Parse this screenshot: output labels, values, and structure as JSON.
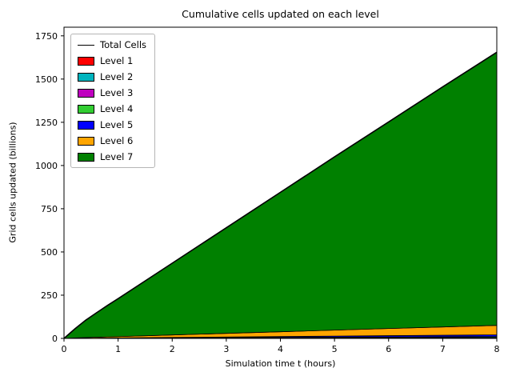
{
  "chart_data": {
    "type": "area",
    "title": "Cumulative cells updated on each level",
    "xlabel": "Simulation time t (hours)",
    "ylabel": "Grid cells updated (billions)",
    "xlim": [
      0,
      8
    ],
    "ylim": [
      0,
      1800
    ],
    "xticks": [
      0,
      1,
      2,
      3,
      4,
      5,
      6,
      7,
      8
    ],
    "yticks": [
      0,
      250,
      500,
      750,
      1000,
      1250,
      1500,
      1750
    ],
    "grid": false,
    "legend_position": "upper left",
    "x": [
      0,
      0.2,
      0.4,
      0.6,
      0.8,
      1,
      2,
      3,
      4,
      5,
      6,
      7,
      8
    ],
    "series": [
      {
        "name": "Level 1",
        "color": "#ff0000",
        "values": [
          0,
          0.0,
          0.1,
          0.1,
          0.1,
          0.1,
          0.3,
          0.4,
          0.5,
          0.6,
          0.8,
          0.9,
          1.0
        ]
      },
      {
        "name": "Level 2",
        "color": "#00b4be",
        "values": [
          0,
          0.1,
          0.1,
          0.2,
          0.2,
          0.3,
          0.5,
          0.8,
          1.0,
          1.3,
          1.5,
          1.7,
          2.0
        ]
      },
      {
        "name": "Level 3",
        "color": "#bf00bf",
        "values": [
          0,
          0.1,
          0.2,
          0.3,
          0.3,
          0.4,
          0.8,
          1.2,
          1.5,
          1.9,
          2.3,
          2.6,
          3.0
        ]
      },
      {
        "name": "Level 4",
        "color": "#32cd32",
        "values": [
          0,
          0.2,
          0.3,
          0.4,
          0.6,
          0.7,
          1.3,
          1.9,
          2.5,
          3.2,
          3.8,
          4.4,
          5.0
        ]
      },
      {
        "name": "Level 5",
        "color": "#0000ff",
        "values": [
          0,
          0.3,
          0.6,
          0.9,
          1.1,
          1.4,
          2.6,
          3.8,
          5.1,
          6.3,
          7.5,
          8.7,
          9.9
        ]
      },
      {
        "name": "Level 6",
        "color": "#ffa500",
        "values": [
          0,
          1.8,
          3.5,
          4.9,
          6.3,
          7.6,
          14.4,
          21.1,
          27.9,
          34.7,
          41.3,
          48.0,
          54.6
        ]
      },
      {
        "name": "Level 7",
        "color": "#008000",
        "values": [
          0,
          52.5,
          100.2,
          141.2,
          181.4,
          219.5,
          415.1,
          610.8,
          806.5,
          1002.0,
          1194.8,
          1388.7,
          1579.5
        ]
      }
    ],
    "total_line": {
      "name": "Total Cells",
      "color": "#000000",
      "values": [
        0,
        55,
        105,
        148,
        190,
        230,
        435,
        640,
        845,
        1050,
        1252,
        1455,
        1655
      ]
    }
  }
}
